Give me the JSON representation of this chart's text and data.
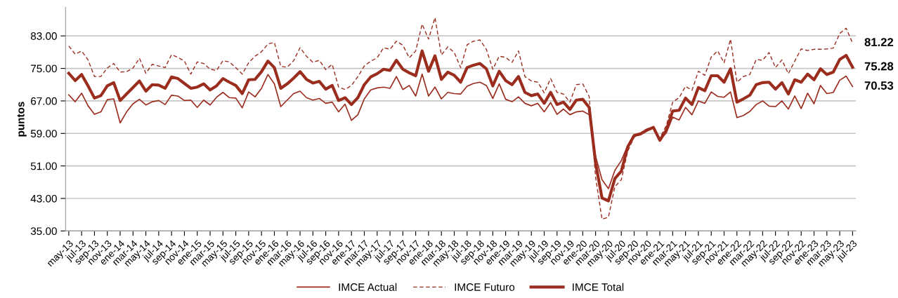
{
  "chart_data": {
    "type": "line",
    "ylabel": "puntos",
    "categories": [
      "may-13",
      null,
      "jul-13",
      null,
      "sep-13",
      null,
      "nov-13",
      null,
      "ene-14",
      null,
      "mar-14",
      null,
      "may-14",
      null,
      "jul-14",
      null,
      "sep-14",
      null,
      "nov-14",
      null,
      "ene-15",
      null,
      "mar-15",
      null,
      "may-15",
      null,
      "jul-15",
      null,
      "sep-15",
      null,
      "nov-15",
      null,
      "ene-16",
      null,
      "mar-16",
      null,
      "may-16",
      null,
      "jul-16",
      null,
      "sep-16",
      null,
      "nov-16",
      null,
      "ene-17",
      null,
      "mar-17",
      null,
      "may-17",
      null,
      "jul-17",
      null,
      "sep-17",
      null,
      "nov-17",
      null,
      "ene-18",
      null,
      "mar-18",
      null,
      "may-18",
      null,
      "jul-18",
      null,
      "sep-18",
      null,
      "nov-18",
      null,
      "ene-19",
      null,
      "mar-19",
      null,
      "may-19",
      null,
      "jul-19",
      null,
      "sep-19",
      null,
      "nov-19",
      null,
      "ene-20",
      null,
      "mar-20",
      null,
      "may-20",
      null,
      "jul-20",
      null,
      "sep-20",
      null,
      "nov-20",
      null,
      "ene-21",
      null,
      "mar-21",
      null,
      "may-21",
      null,
      "jul-21",
      null,
      "sep-21",
      null,
      "nov-21",
      null,
      "ene-22",
      null,
      "mar-22",
      null,
      "may-22",
      null,
      "jul-22",
      null,
      "sep-22",
      null,
      "nov-22",
      null,
      "ene-23",
      null,
      "mar-23",
      null,
      "may-23",
      null,
      "jul-23"
    ],
    "series": [
      {
        "name": "IMCE Actual",
        "color": "#9b2d1f",
        "line_style": "solid",
        "values": [
          68.5,
          66.8,
          68.9,
          65.8,
          63.7,
          64.3,
          67.3,
          67.5,
          61.6,
          64.3,
          66.3,
          67.4,
          66.0,
          66.8,
          67.1,
          66.1,
          68.4,
          68.2,
          67.1,
          67.2,
          65.4,
          67.2,
          66.0,
          67.9,
          69.1,
          67.8,
          67.7,
          65.3,
          69.2,
          68.0,
          70.1,
          73.5,
          71.2,
          65.6,
          67.2,
          68.8,
          69.4,
          67.8,
          67.2,
          67.6,
          66.4,
          66.7,
          64.3,
          66.2,
          62.2,
          63.6,
          67.5,
          69.7,
          70.2,
          70.4,
          70.1,
          73.0,
          69.8,
          70.8,
          68.2,
          73.6,
          68.2,
          70.4,
          67.5,
          69.1,
          68.8,
          68.7,
          70.6,
          71.3,
          71.6,
          70.8,
          67.6,
          71.2,
          67.4,
          66.8,
          68.0,
          66.4,
          65.8,
          66.4,
          64.3,
          66.6,
          63.7,
          65.0,
          63.6,
          64.3,
          64.5,
          63.6,
          53.4,
          47.6,
          45.4,
          49.9,
          52.3,
          56.0,
          58.5,
          58.8,
          60.1,
          60.5,
          57.5,
          59.1,
          63.0,
          62.3,
          65.4,
          63.6,
          67.0,
          66.4,
          69.2,
          68.1,
          67.9,
          69.2,
          62.9,
          63.4,
          64.4,
          66.1,
          67.0,
          65.7,
          65.6,
          67.0,
          65.0,
          68.2,
          65.1,
          68.9,
          66.3,
          70.8,
          68.8,
          69.1,
          72.1,
          73.1,
          70.53
        ],
        "value_labels": [
          null,
          null,
          null,
          null,
          null,
          null,
          null,
          null,
          null,
          null,
          null,
          null,
          null,
          null,
          null,
          null,
          null,
          null,
          null,
          null,
          null,
          null,
          null,
          null,
          null,
          null,
          null,
          null,
          null,
          null,
          null,
          null,
          null,
          null,
          null,
          null,
          null,
          null,
          null,
          null,
          null,
          null,
          null,
          null,
          null,
          null,
          null,
          null,
          null,
          null,
          null,
          null,
          null,
          null,
          null,
          null,
          null,
          null,
          null,
          null,
          null,
          null,
          null,
          null,
          null,
          null,
          null,
          null,
          null,
          null,
          null,
          null,
          null,
          null,
          null,
          null,
          null,
          null,
          null,
          null,
          null,
          null,
          null,
          null,
          null,
          null,
          null,
          null,
          null,
          null,
          null,
          null,
          null,
          null,
          null,
          null,
          null,
          null,
          null,
          null,
          null,
          null,
          null,
          null,
          null,
          null,
          null,
          null,
          null,
          null,
          null,
          null,
          null,
          null,
          null,
          null,
          null,
          null,
          null,
          null,
          null,
          null,
          "70.53"
        ]
      },
      {
        "name": "IMCE Futuro",
        "color": "#9b2d1f",
        "line_style": "dashed",
        "values": [
          80.5,
          78.5,
          79.3,
          77.1,
          73.0,
          73.0,
          75.1,
          76.2,
          74.1,
          74.2,
          75.1,
          77.5,
          73.8,
          76.0,
          75.6,
          75.2,
          78.4,
          77.7,
          76.8,
          73.6,
          76.6,
          76.2,
          74.8,
          74.5,
          76.9,
          76.6,
          75.2,
          73.6,
          76.4,
          78.0,
          79.1,
          81.0,
          81.4,
          75.5,
          75.3,
          76.9,
          80.1,
          78.0,
          76.5,
          77.0,
          74.7,
          76.0,
          70.4,
          69.8,
          70.8,
          73.0,
          75.6,
          76.8,
          77.6,
          80.1,
          79.7,
          81.7,
          80.7,
          77.6,
          79.3,
          85.9,
          82.2,
          87.5,
          78.3,
          80.3,
          78.9,
          75.2,
          80.8,
          81.7,
          82.0,
          79.7,
          74.8,
          78.0,
          77.7,
          76.5,
          79.3,
          73.0,
          71.9,
          71.6,
          69.0,
          72.5,
          69.1,
          68.7,
          66.7,
          71.0,
          71.2,
          68.1,
          48.2,
          37.9,
          38.4,
          45.9,
          47.6,
          54.6,
          58.1,
          58.7,
          60.3,
          59.8,
          57.9,
          60.9,
          66.7,
          67.8,
          70.6,
          69.6,
          74.3,
          73.3,
          77.8,
          79.3,
          76.4,
          82.2,
          71.6,
          73.0,
          73.5,
          77.2,
          77.0,
          78.9,
          75.2,
          77.1,
          73.7,
          76.8,
          79.8,
          79.4,
          79.7,
          79.7,
          79.8,
          80.0,
          83.6,
          84.9,
          81.22
        ],
        "value_labels": [
          null,
          null,
          null,
          null,
          null,
          null,
          null,
          null,
          null,
          null,
          null,
          null,
          null,
          null,
          null,
          null,
          null,
          null,
          null,
          null,
          null,
          null,
          null,
          null,
          null,
          null,
          null,
          null,
          null,
          null,
          null,
          null,
          null,
          null,
          null,
          null,
          null,
          null,
          null,
          null,
          null,
          null,
          null,
          null,
          null,
          null,
          null,
          null,
          null,
          null,
          null,
          null,
          null,
          null,
          null,
          null,
          null,
          null,
          null,
          null,
          null,
          null,
          null,
          null,
          null,
          null,
          null,
          null,
          null,
          null,
          null,
          null,
          null,
          null,
          null,
          null,
          null,
          null,
          null,
          null,
          null,
          null,
          null,
          null,
          null,
          null,
          null,
          null,
          null,
          null,
          null,
          null,
          null,
          null,
          null,
          null,
          null,
          null,
          null,
          null,
          null,
          null,
          null,
          null,
          null,
          null,
          null,
          null,
          null,
          null,
          null,
          null,
          null,
          null,
          null,
          null,
          null,
          null,
          null,
          null,
          null,
          null,
          "81.22"
        ]
      },
      {
        "name": "IMCE Total",
        "color": "#9b2d1f",
        "line_style": "solid",
        "values": [
          73.8,
          72.0,
          73.5,
          70.7,
          67.7,
          68.3,
          70.7,
          71.5,
          67.1,
          68.7,
          70.3,
          71.9,
          69.4,
          71.0,
          70.9,
          70.1,
          72.9,
          72.5,
          71.3,
          70.1,
          70.4,
          71.2,
          69.7,
          70.7,
          72.5,
          71.6,
          70.8,
          68.8,
          72.2,
          72.3,
          74.2,
          76.8,
          75.2,
          70.1,
          71.2,
          72.6,
          74.2,
          72.3,
          71.4,
          71.8,
          69.9,
          70.8,
          67.1,
          67.8,
          66.1,
          67.8,
          71.0,
          72.9,
          73.7,
          74.8,
          74.5,
          77.0,
          74.8,
          73.9,
          73.2,
          79.3,
          74.3,
          78.1,
          72.3,
          74.1,
          73.3,
          71.6,
          75.2,
          75.8,
          76.2,
          74.9,
          70.7,
          74.3,
          72.0,
          71.0,
          73.0,
          69.1,
          68.3,
          68.7,
          66.4,
          69.1,
          66.1,
          66.7,
          64.9,
          67.2,
          67.4,
          65.4,
          51.7,
          43.1,
          42.4,
          47.9,
          49.7,
          55.7,
          58.5,
          58.9,
          59.8,
          60.5,
          57.3,
          59.8,
          64.5,
          64.7,
          67.7,
          66.1,
          70.3,
          69.5,
          73.2,
          73.2,
          71.6,
          74.9,
          66.7,
          67.5,
          68.4,
          71.0,
          71.5,
          71.6,
          69.9,
          71.5,
          68.7,
          72.2,
          71.6,
          73.6,
          72.2,
          74.9,
          73.5,
          74.1,
          77.2,
          78.2,
          75.28
        ],
        "value_labels": [
          null,
          null,
          null,
          null,
          null,
          null,
          null,
          null,
          null,
          null,
          null,
          null,
          null,
          null,
          null,
          null,
          null,
          null,
          null,
          null,
          null,
          null,
          null,
          null,
          null,
          null,
          null,
          null,
          null,
          null,
          null,
          null,
          null,
          null,
          null,
          null,
          null,
          null,
          null,
          null,
          null,
          null,
          null,
          null,
          null,
          null,
          null,
          null,
          null,
          null,
          null,
          null,
          null,
          null,
          null,
          null,
          null,
          null,
          null,
          null,
          null,
          null,
          null,
          null,
          null,
          null,
          null,
          null,
          null,
          null,
          null,
          null,
          null,
          null,
          null,
          null,
          null,
          null,
          null,
          null,
          null,
          null,
          null,
          null,
          null,
          null,
          null,
          null,
          null,
          null,
          null,
          null,
          null,
          null,
          null,
          null,
          null,
          null,
          null,
          null,
          null,
          null,
          null,
          null,
          null,
          null,
          null,
          null,
          null,
          null,
          null,
          null,
          null,
          null,
          null,
          null,
          null,
          null,
          null,
          null,
          null,
          null,
          "75.28"
        ]
      }
    ],
    "ylim": [
      35,
      90
    ],
    "yticks": [
      {
        "value": 35,
        "label": "35.00"
      },
      {
        "value": 43,
        "label": "43.00"
      },
      {
        "value": 51,
        "label": "51.00"
      },
      {
        "value": 59,
        "label": "59.00"
      },
      {
        "value": 67,
        "label": "67.00"
      },
      {
        "value": 75,
        "label": "75.00"
      },
      {
        "value": 83,
        "label": "83.00"
      }
    ],
    "grid": "y",
    "legend": "bottom",
    "marker": "none"
  }
}
